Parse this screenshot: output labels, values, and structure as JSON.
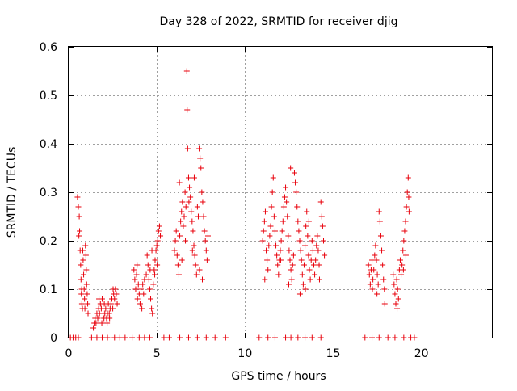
{
  "chart_data": {
    "type": "scatter",
    "title": "Day 328 of 2022, SRMTID for receiver djig",
    "xlabel": "GPS time / hours",
    "ylabel": "SRMTID / TECUs",
    "xlim": [
      0,
      24
    ],
    "ylim": [
      0,
      0.6
    ],
    "x_ticks": [
      0,
      5,
      10,
      15,
      20
    ],
    "x_tick_labels": [
      "0",
      "5",
      "10",
      "15",
      "20"
    ],
    "y_ticks": [
      0,
      0.1,
      0.2,
      0.3,
      0.4,
      0.5,
      0.6
    ],
    "y_tick_labels": [
      "0",
      "0.1",
      "0.2",
      "0.3",
      "0.4",
      "0.5",
      "0.6"
    ],
    "grid": true,
    "marker": "+",
    "marker_color": "#e8000b",
    "series": [
      {
        "name": "SRMTID",
        "points": [
          [
            0.5,
            0.29
          ],
          [
            0.55,
            0.27
          ],
          [
            0.6,
            0.25
          ],
          [
            0.62,
            0.22
          ],
          [
            0.65,
            0.18
          ],
          [
            0.68,
            0.15
          ],
          [
            0.7,
            0.12
          ],
          [
            0.72,
            0.09
          ],
          [
            0.75,
            0.07
          ],
          [
            0.78,
            0.06
          ],
          [
            0.8,
            0.18
          ],
          [
            0.82,
            0.16
          ],
          [
            0.85,
            0.13
          ],
          [
            0.88,
            0.1
          ],
          [
            0.9,
            0.08
          ],
          [
            0.92,
            0.06
          ],
          [
            0.95,
            0.19
          ],
          [
            0.98,
            0.17
          ],
          [
            1.0,
            0.14
          ],
          [
            1.02,
            0.11
          ],
          [
            1.05,
            0.09
          ],
          [
            1.08,
            0.07
          ],
          [
            1.1,
            0.05
          ],
          [
            0.58,
            0.21
          ],
          [
            0.74,
            0.1
          ],
          [
            1.4,
            0.02
          ],
          [
            1.45,
            0.03
          ],
          [
            1.5,
            0.04
          ],
          [
            1.55,
            0.03
          ],
          [
            1.6,
            0.05
          ],
          [
            1.65,
            0.04
          ],
          [
            1.7,
            0.06
          ],
          [
            1.75,
            0.05
          ],
          [
            1.8,
            0.07
          ],
          [
            1.85,
            0.06
          ],
          [
            1.9,
            0.08
          ],
          [
            1.95,
            0.05
          ],
          [
            2.0,
            0.04
          ],
          [
            2.05,
            0.05
          ],
          [
            2.1,
            0.06
          ],
          [
            2.15,
            0.04
          ],
          [
            2.2,
            0.05
          ],
          [
            2.25,
            0.07
          ],
          [
            2.3,
            0.05
          ],
          [
            2.35,
            0.06
          ],
          [
            2.4,
            0.07
          ],
          [
            2.45,
            0.08
          ],
          [
            2.5,
            0.06
          ],
          [
            2.55,
            0.09
          ],
          [
            2.6,
            0.08
          ],
          [
            2.65,
            0.1
          ],
          [
            2.7,
            0.09
          ],
          [
            2.75,
            0.07
          ],
          [
            1.72,
            0.08
          ],
          [
            2.02,
            0.07
          ],
          [
            2.18,
            0.03
          ],
          [
            2.32,
            0.04
          ],
          [
            2.52,
            0.1
          ],
          [
            1.88,
            0.03
          ],
          [
            3.7,
            0.14
          ],
          [
            3.75,
            0.12
          ],
          [
            3.8,
            0.1
          ],
          [
            3.85,
            0.13
          ],
          [
            3.9,
            0.08
          ],
          [
            3.95,
            0.11
          ],
          [
            4.0,
            0.09
          ],
          [
            4.05,
            0.07
          ],
          [
            4.1,
            0.1
          ],
          [
            4.15,
            0.06
          ],
          [
            4.2,
            0.11
          ],
          [
            4.25,
            0.09
          ],
          [
            4.3,
            0.12
          ],
          [
            4.4,
            0.13
          ],
          [
            4.45,
            0.17
          ],
          [
            4.5,
            0.15
          ],
          [
            4.55,
            0.12
          ],
          [
            4.6,
            0.1
          ],
          [
            4.65,
            0.08
          ],
          [
            4.7,
            0.06
          ],
          [
            4.75,
            0.05
          ],
          [
            4.8,
            0.11
          ],
          [
            4.85,
            0.14
          ],
          [
            4.9,
            0.16
          ],
          [
            4.95,
            0.18
          ],
          [
            5.0,
            0.19
          ],
          [
            5.05,
            0.2
          ],
          [
            5.1,
            0.22
          ],
          [
            5.15,
            0.23
          ],
          [
            5.2,
            0.21
          ],
          [
            4.62,
            0.14
          ],
          [
            4.88,
            0.13
          ],
          [
            5.02,
            0.15
          ],
          [
            4.72,
            0.18
          ],
          [
            3.88,
            0.15
          ],
          [
            6.0,
            0.18
          ],
          [
            6.05,
            0.2
          ],
          [
            6.1,
            0.22
          ],
          [
            6.15,
            0.17
          ],
          [
            6.2,
            0.15
          ],
          [
            6.25,
            0.13
          ],
          [
            6.3,
            0.21
          ],
          [
            6.35,
            0.24
          ],
          [
            6.4,
            0.26
          ],
          [
            6.45,
            0.28
          ],
          [
            6.5,
            0.23
          ],
          [
            6.55,
            0.25
          ],
          [
            6.6,
            0.3
          ],
          [
            6.65,
            0.27
          ],
          [
            6.7,
            0.55
          ],
          [
            6.72,
            0.47
          ],
          [
            6.75,
            0.39
          ],
          [
            6.8,
            0.33
          ],
          [
            6.85,
            0.31
          ],
          [
            6.9,
            0.29
          ],
          [
            6.95,
            0.26
          ],
          [
            7.0,
            0.24
          ],
          [
            7.05,
            0.22
          ],
          [
            7.1,
            0.19
          ],
          [
            7.15,
            0.17
          ],
          [
            7.2,
            0.15
          ],
          [
            7.25,
            0.13
          ],
          [
            7.3,
            0.27
          ],
          [
            7.35,
            0.25
          ],
          [
            7.4,
            0.39
          ],
          [
            7.45,
            0.37
          ],
          [
            7.5,
            0.35
          ],
          [
            7.55,
            0.3
          ],
          [
            7.6,
            0.28
          ],
          [
            7.65,
            0.25
          ],
          [
            7.7,
            0.22
          ],
          [
            7.75,
            0.2
          ],
          [
            7.8,
            0.18
          ],
          [
            7.85,
            0.16
          ],
          [
            7.9,
            0.21
          ],
          [
            6.28,
            0.32
          ],
          [
            6.82,
            0.28
          ],
          [
            7.12,
            0.33
          ],
          [
            7.42,
            0.14
          ],
          [
            7.58,
            0.12
          ],
          [
            6.62,
            0.2
          ],
          [
            7.02,
            0.18
          ],
          [
            6.42,
            0.16
          ],
          [
            11.0,
            0.2
          ],
          [
            11.05,
            0.22
          ],
          [
            11.1,
            0.24
          ],
          [
            11.15,
            0.26
          ],
          [
            11.2,
            0.18
          ],
          [
            11.25,
            0.16
          ],
          [
            11.3,
            0.14
          ],
          [
            11.35,
            0.19
          ],
          [
            11.4,
            0.21
          ],
          [
            11.45,
            0.23
          ],
          [
            11.5,
            0.27
          ],
          [
            11.55,
            0.3
          ],
          [
            11.6,
            0.33
          ],
          [
            11.65,
            0.25
          ],
          [
            11.7,
            0.22
          ],
          [
            11.75,
            0.19
          ],
          [
            11.8,
            0.17
          ],
          [
            11.85,
            0.15
          ],
          [
            11.9,
            0.13
          ],
          [
            11.95,
            0.16
          ],
          [
            12.0,
            0.18
          ],
          [
            12.05,
            0.2
          ],
          [
            12.1,
            0.22
          ],
          [
            12.15,
            0.24
          ],
          [
            12.2,
            0.27
          ],
          [
            12.25,
            0.29
          ],
          [
            12.3,
            0.31
          ],
          [
            12.35,
            0.28
          ],
          [
            12.4,
            0.25
          ],
          [
            12.45,
            0.21
          ],
          [
            12.5,
            0.18
          ],
          [
            12.55,
            0.16
          ],
          [
            12.6,
            0.14
          ],
          [
            12.65,
            0.12
          ],
          [
            12.7,
            0.15
          ],
          [
            12.75,
            0.17
          ],
          [
            12.8,
            0.34
          ],
          [
            12.85,
            0.32
          ],
          [
            12.9,
            0.3
          ],
          [
            12.95,
            0.27
          ],
          [
            13.0,
            0.24
          ],
          [
            13.05,
            0.22
          ],
          [
            13.1,
            0.2
          ],
          [
            13.15,
            0.18
          ],
          [
            13.2,
            0.16
          ],
          [
            13.25,
            0.13
          ],
          [
            13.3,
            0.11
          ],
          [
            13.35,
            0.15
          ],
          [
            13.4,
            0.19
          ],
          [
            13.45,
            0.23
          ],
          [
            13.5,
            0.26
          ],
          [
            13.55,
            0.21
          ],
          [
            13.6,
            0.17
          ],
          [
            13.65,
            0.14
          ],
          [
            13.7,
            0.12
          ],
          [
            13.75,
            0.16
          ],
          [
            13.8,
            0.2
          ],
          [
            13.85,
            0.18
          ],
          [
            13.9,
            0.15
          ],
          [
            13.95,
            0.13
          ],
          [
            14.0,
            0.16
          ],
          [
            14.05,
            0.19
          ],
          [
            14.1,
            0.21
          ],
          [
            14.15,
            0.18
          ],
          [
            14.2,
            0.15
          ],
          [
            14.3,
            0.28
          ],
          [
            14.35,
            0.25
          ],
          [
            14.4,
            0.23
          ],
          [
            14.45,
            0.2
          ],
          [
            14.5,
            0.17
          ],
          [
            11.12,
            0.12
          ],
          [
            12.58,
            0.35
          ],
          [
            13.12,
            0.09
          ],
          [
            13.62,
            0.24
          ],
          [
            12.02,
            0.16
          ],
          [
            12.48,
            0.11
          ],
          [
            14.22,
            0.12
          ],
          [
            13.42,
            0.1
          ],
          [
            17.0,
            0.15
          ],
          [
            17.05,
            0.13
          ],
          [
            17.1,
            0.11
          ],
          [
            17.15,
            0.14
          ],
          [
            17.2,
            0.16
          ],
          [
            17.25,
            0.12
          ],
          [
            17.3,
            0.14
          ],
          [
            17.35,
            0.17
          ],
          [
            17.4,
            0.19
          ],
          [
            17.45,
            0.16
          ],
          [
            17.5,
            0.13
          ],
          [
            17.55,
            0.11
          ],
          [
            17.6,
            0.26
          ],
          [
            17.65,
            0.24
          ],
          [
            17.7,
            0.21
          ],
          [
            17.75,
            0.18
          ],
          [
            17.8,
            0.15
          ],
          [
            17.85,
            0.12
          ],
          [
            17.9,
            0.1
          ],
          [
            17.92,
            0.07
          ],
          [
            18.4,
            0.13
          ],
          [
            18.45,
            0.11
          ],
          [
            18.5,
            0.09
          ],
          [
            18.55,
            0.07
          ],
          [
            18.6,
            0.12
          ],
          [
            18.65,
            0.1
          ],
          [
            18.7,
            0.08
          ],
          [
            18.75,
            0.14
          ],
          [
            18.8,
            0.16
          ],
          [
            18.85,
            0.13
          ],
          [
            18.9,
            0.15
          ],
          [
            18.95,
            0.18
          ],
          [
            19.0,
            0.2
          ],
          [
            19.05,
            0.22
          ],
          [
            19.1,
            0.24
          ],
          [
            19.15,
            0.27
          ],
          [
            19.2,
            0.3
          ],
          [
            19.25,
            0.33
          ],
          [
            19.28,
            0.29
          ],
          [
            19.3,
            0.26
          ],
          [
            19.12,
            0.17
          ],
          [
            18.98,
            0.14
          ],
          [
            18.62,
            0.06
          ],
          [
            17.48,
            0.09
          ],
          [
            17.22,
            0.1
          ],
          [
            0.1,
            0.0
          ],
          [
            0.25,
            0.0
          ],
          [
            0.4,
            0.0
          ],
          [
            0.55,
            0.0
          ],
          [
            1.3,
            0.0
          ],
          [
            1.6,
            0.0
          ],
          [
            1.9,
            0.0
          ],
          [
            2.2,
            0.0
          ],
          [
            2.6,
            0.0
          ],
          [
            2.9,
            0.0
          ],
          [
            3.2,
            0.0
          ],
          [
            3.6,
            0.0
          ],
          [
            4.0,
            0.0
          ],
          [
            4.3,
            0.0
          ],
          [
            4.6,
            0.0
          ],
          [
            5.4,
            0.0
          ],
          [
            5.7,
            0.0
          ],
          [
            6.3,
            0.0
          ],
          [
            6.8,
            0.0
          ],
          [
            7.3,
            0.0
          ],
          [
            7.8,
            0.0
          ],
          [
            8.3,
            0.0
          ],
          [
            8.9,
            0.0
          ],
          [
            10.8,
            0.0
          ],
          [
            11.3,
            0.0
          ],
          [
            11.7,
            0.0
          ],
          [
            12.3,
            0.0
          ],
          [
            12.6,
            0.0
          ],
          [
            13.0,
            0.0
          ],
          [
            13.4,
            0.0
          ],
          [
            13.8,
            0.0
          ],
          [
            14.3,
            0.0
          ],
          [
            16.8,
            0.0
          ],
          [
            17.2,
            0.0
          ],
          [
            17.6,
            0.0
          ],
          [
            18.1,
            0.0
          ],
          [
            18.5,
            0.0
          ],
          [
            19.0,
            0.0
          ],
          [
            19.4,
            0.0
          ],
          [
            19.6,
            0.0
          ]
        ]
      }
    ]
  }
}
